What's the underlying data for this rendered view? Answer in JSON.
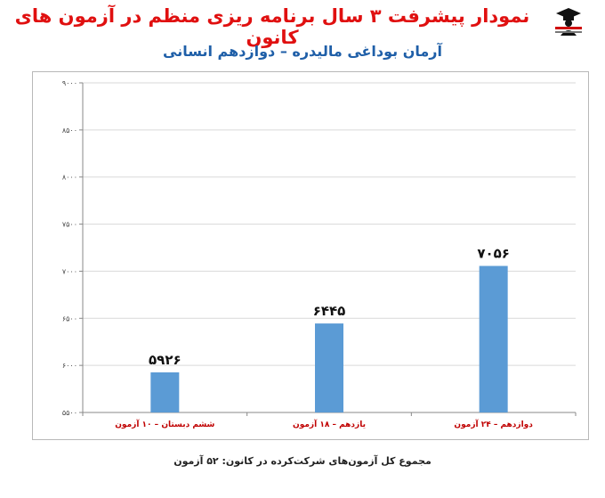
{
  "header": {
    "title": "نمودار پیشرفت ۳ سال برنامه ریزی منظم در آزمون های کانون",
    "subtitle": "آرمان بوداغی مالیدره – دوازدهم انسانی"
  },
  "footer": {
    "note": "مجموع کل آزمون‌های شرکت‌کرده در کانون: ۵۲ آزمون"
  },
  "logo": {
    "icon": "graduate-logo-icon"
  },
  "chart_data": {
    "type": "bar",
    "categories": [
      "ششم دبستان – ۱۰ آزمون",
      "یازدهم – ۱۸ آزمون",
      "دوازدهم – ۲۴ آزمون"
    ],
    "values": [
      5926,
      6445,
      7056
    ],
    "value_labels": [
      "۵۹۲۶",
      "۶۴۴۵",
      "۷۰۵۶"
    ],
    "ylim": [
      5500,
      9000
    ],
    "yticks": [
      5500,
      6000,
      6500,
      7000,
      7500,
      8000,
      8500,
      9000
    ],
    "ytick_labels": [
      "۵۵۰۰",
      "۶۰۰۰",
      "۶۵۰۰",
      "۷۰۰۰",
      "۷۵۰۰",
      "۸۰۰۰",
      "۸۵۰۰",
      "۹۰۰۰"
    ],
    "grid": true,
    "bar_color": "#5b9bd5",
    "category_color": "#c00000",
    "title": "",
    "xlabel": "",
    "ylabel": ""
  }
}
